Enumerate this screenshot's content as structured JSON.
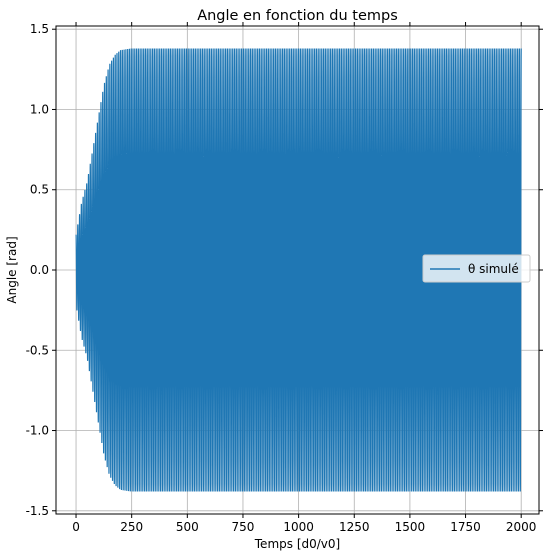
{
  "chart_data": {
    "type": "line",
    "title": "Angle en fonction du temps",
    "xlabel": "Temps [d0/v0]",
    "ylabel": "Angle [rad]",
    "xlim": [
      -90,
      2080
    ],
    "ylim": [
      -1.52,
      1.52
    ],
    "xticks": [
      0,
      250,
      500,
      750,
      1000,
      1250,
      1500,
      1750,
      2000
    ],
    "yticks": [
      -1.5,
      -1.0,
      -0.5,
      0.0,
      0.5,
      1.0,
      1.5
    ],
    "grid": true,
    "legend_position": "center-right",
    "series": [
      {
        "name": "θ simulé",
        "color": "#1f77b4",
        "x_start": 0,
        "x_end": 2000,
        "envelope_x": [
          0,
          10,
          25,
          50,
          75,
          100,
          125,
          150,
          175,
          200,
          250,
          300,
          2000
        ],
        "envelope_amplitude": [
          0.22,
          0.3,
          0.42,
          0.55,
          0.75,
          0.95,
          1.15,
          1.28,
          1.34,
          1.37,
          1.38,
          1.38,
          1.38
        ],
        "period": 8
      }
    ]
  }
}
